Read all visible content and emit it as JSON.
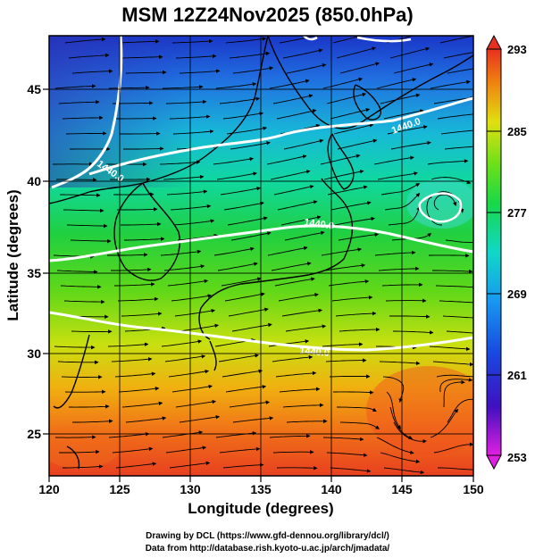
{
  "title": "MSM 12Z24Nov2025 (850.0hPa)",
  "x_axis": {
    "label": "Longitude (degrees)",
    "range": [
      120,
      150
    ],
    "ticks": [
      "120",
      "125",
      "130",
      "135",
      "140",
      "145",
      "150"
    ]
  },
  "y_axis": {
    "label": "Latitude  (degrees)",
    "range": [
      22.4,
      47.6
    ],
    "ticks": [
      "25",
      "30",
      "35",
      "40",
      "45"
    ]
  },
  "colorbar": {
    "range": [
      253,
      293
    ],
    "labels": [
      "293",
      "285",
      "277",
      "269",
      "261",
      "253"
    ]
  },
  "contour_labels": [
    "1440.0",
    "1440.0",
    "1440.0",
    "1440.0"
  ],
  "credits": {
    "line1": "Drawing by DCL (https://www.gfd-dennou.org/library/dcl/)",
    "line2": "Data from http://database.rish.kyoto-u.ac.jp/arch/jmadata/"
  },
  "colors": {
    "contour": "#ffffff",
    "streamline": "#000000",
    "coastline": "#000000"
  }
}
